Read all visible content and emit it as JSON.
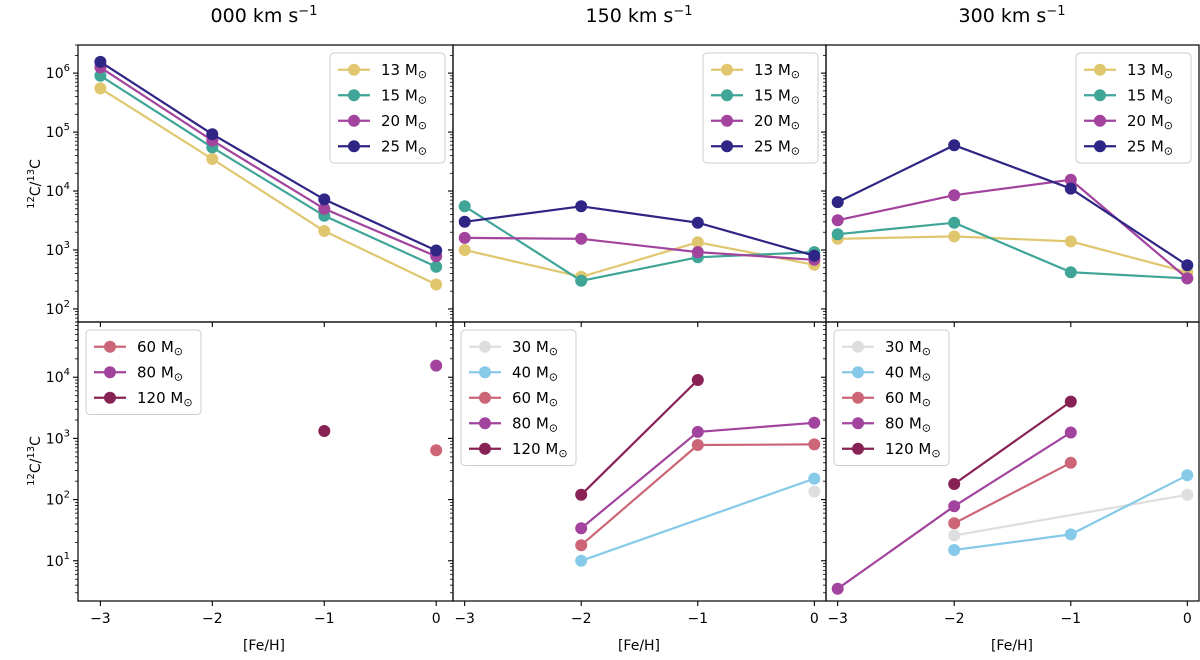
{
  "figure": {
    "column_titles": [
      {
        "text": "000 km s",
        "sup": "−1"
      },
      {
        "text": "150 km s",
        "sup": "−1"
      },
      {
        "text": "300 km s",
        "sup": "−1"
      }
    ],
    "ylabel": {
      "sup1": "12",
      "mid": "C/",
      "sup2": "13",
      "end": "C"
    },
    "xlabel": "[Fe/H]",
    "msun_unit": {
      "m": "M",
      "sun": "⊙"
    }
  },
  "colors": {
    "13": "#e0c76f",
    "15": "#3fa597",
    "20": "#a2449e",
    "25": "#2e2585",
    "30": "#dedede",
    "40": "#87c9e8",
    "60": "#cc6677",
    "80": "#a2449e",
    "120": "#882255"
  },
  "chart_data": [
    {
      "type": "line",
      "panel": "top-left",
      "rotation": "000 km s-1",
      "x_ticks": [
        -3,
        -2,
        -1,
        0
      ],
      "x_tick_labels": [
        "−3",
        "−2",
        "−1",
        "0"
      ],
      "xlim": [
        -3.2,
        0.15
      ],
      "yscale": "log",
      "ylim": [
        60,
        3000000
      ],
      "y_ticks": [
        2,
        3,
        4,
        5,
        6
      ],
      "ylabel": "12C/13C",
      "xlabel": "",
      "legend": "top-right",
      "series": [
        {
          "name": "13",
          "label": "13",
          "x": [
            -3,
            -2,
            -1,
            0
          ],
          "y": [
            550000,
            35000,
            2100,
            260
          ]
        },
        {
          "name": "15",
          "label": "15",
          "x": [
            -3,
            -2,
            -1,
            0
          ],
          "y": [
            900000,
            55000,
            3800,
            520
          ]
        },
        {
          "name": "20",
          "label": "20",
          "x": [
            -3,
            -2,
            -1,
            0
          ],
          "y": [
            1250000,
            72000,
            5000,
            780
          ]
        },
        {
          "name": "25",
          "label": "25",
          "x": [
            -3,
            -2,
            -1,
            0
          ],
          "y": [
            1550000,
            92000,
            7200,
            980
          ]
        }
      ]
    },
    {
      "type": "line",
      "panel": "top-middle",
      "rotation": "150 km s-1",
      "x_ticks": [
        -3,
        -2,
        -1,
        0
      ],
      "x_tick_labels": [
        "−3",
        "−2",
        "−1",
        "0"
      ],
      "xlim": [
        -3.1,
        0.1
      ],
      "yscale": "log",
      "ylim": [
        60,
        3000000
      ],
      "y_ticks": [],
      "legend": "top-right",
      "series": [
        {
          "name": "13",
          "label": "13",
          "x": [
            -3,
            -2,
            -1,
            0
          ],
          "y": [
            1000,
            350,
            1350,
            560
          ]
        },
        {
          "name": "15",
          "label": "15",
          "x": [
            -3,
            -2,
            -1,
            0
          ],
          "y": [
            5500,
            300,
            750,
            920
          ]
        },
        {
          "name": "20",
          "label": "20",
          "x": [
            -3,
            -2,
            -1,
            0
          ],
          "y": [
            1600,
            1550,
            920,
            680
          ]
        },
        {
          "name": "25",
          "label": "25",
          "x": [
            -3,
            -2,
            -1,
            0
          ],
          "y": [
            3000,
            5500,
            2900,
            800
          ]
        }
      ]
    },
    {
      "type": "line",
      "panel": "top-right",
      "rotation": "300 km s-1",
      "x_ticks": [
        -3,
        -2,
        -1,
        0
      ],
      "x_tick_labels": [
        "−3",
        "−2",
        "−1",
        "0"
      ],
      "xlim": [
        -3.1,
        0.1
      ],
      "yscale": "log",
      "ylim": [
        60,
        3000000
      ],
      "y_ticks": [],
      "legend": "top-right",
      "series": [
        {
          "name": "13",
          "label": "13",
          "x": [
            -3,
            -2,
            -1,
            0
          ],
          "y": [
            1550,
            1700,
            1400,
            420
          ]
        },
        {
          "name": "15",
          "label": "15",
          "x": [
            -3,
            -2,
            -1,
            0
          ],
          "y": [
            1850,
            2900,
            420,
            330
          ]
        },
        {
          "name": "20",
          "label": "20",
          "x": [
            -3,
            -2,
            -1,
            0
          ],
          "y": [
            3200,
            8500,
            15500,
            330
          ]
        },
        {
          "name": "25",
          "label": "25",
          "x": [
            -3,
            -2,
            -1,
            0
          ],
          "y": [
            6500,
            60000,
            11000,
            550
          ]
        }
      ]
    },
    {
      "type": "scatter",
      "panel": "bottom-left",
      "rotation": "000 km s-1",
      "x_ticks": [
        -3,
        -2,
        -1,
        0
      ],
      "x_tick_labels": [
        "−3",
        "−2",
        "−1",
        "0"
      ],
      "xlim": [
        -3.2,
        0.15
      ],
      "yscale": "log",
      "ylim": [
        2.2,
        80000
      ],
      "y_ticks": [
        1,
        2,
        3,
        4
      ],
      "ylabel": "12C/13C",
      "xlabel": "[Fe/H]",
      "legend": "top-left",
      "series": [
        {
          "name": "60",
          "label": "60",
          "x": [
            0
          ],
          "y": [
            640
          ]
        },
        {
          "name": "80",
          "label": "80",
          "x": [
            0
          ],
          "y": [
            15500
          ]
        },
        {
          "name": "120",
          "label": "120",
          "x": [
            -1
          ],
          "y": [
            1320
          ]
        }
      ]
    },
    {
      "type": "line",
      "panel": "bottom-middle",
      "rotation": "150 km s-1",
      "x_ticks": [
        -3,
        -2,
        -1,
        0
      ],
      "x_tick_labels": [
        "−3",
        "−2",
        "−1",
        "0"
      ],
      "xlim": [
        -3.1,
        0.1
      ],
      "yscale": "log",
      "ylim": [
        2.2,
        80000
      ],
      "y_ticks": [],
      "xlabel": "[Fe/H]",
      "legend": "top-left",
      "series": [
        {
          "name": "30",
          "label": "30",
          "x": [
            0
          ],
          "y": [
            135
          ]
        },
        {
          "name": "40",
          "label": "40",
          "x": [
            -2,
            0
          ],
          "y": [
            10,
            220
          ]
        },
        {
          "name": "60",
          "label": "60",
          "x": [
            -2,
            -1,
            0
          ],
          "y": [
            18,
            780,
            800
          ]
        },
        {
          "name": "80",
          "label": "80",
          "x": [
            -2,
            -1,
            0
          ],
          "y": [
            34,
            1280,
            1800
          ]
        },
        {
          "name": "120",
          "label": "120",
          "x": [
            -2,
            -1
          ],
          "y": [
            120,
            9000
          ]
        }
      ]
    },
    {
      "type": "line",
      "panel": "bottom-right",
      "rotation": "300 km s-1",
      "x_ticks": [
        -3,
        -2,
        -1,
        0
      ],
      "x_tick_labels": [
        "−3",
        "−2",
        "−1",
        "0"
      ],
      "xlim": [
        -3.1,
        0.1
      ],
      "yscale": "log",
      "ylim": [
        2.2,
        80000
      ],
      "y_ticks": [],
      "xlabel": "[Fe/H]",
      "legend": "top-left",
      "series": [
        {
          "name": "30",
          "label": "30",
          "x": [
            -2,
            0
          ],
          "y": [
            26,
            120
          ]
        },
        {
          "name": "40",
          "label": "40",
          "x": [
            -2,
            -1,
            0
          ],
          "y": [
            15,
            27,
            250
          ]
        },
        {
          "name": "60",
          "label": "60",
          "x": [
            -2,
            -1
          ],
          "y": [
            41,
            400
          ]
        },
        {
          "name": "80",
          "label": "80",
          "x": [
            -3,
            -2,
            -1
          ],
          "y": [
            3.5,
            78,
            1250
          ]
        },
        {
          "name": "120",
          "label": "120",
          "x": [
            -2,
            -1
          ],
          "y": [
            180,
            4000
          ]
        }
      ]
    }
  ]
}
